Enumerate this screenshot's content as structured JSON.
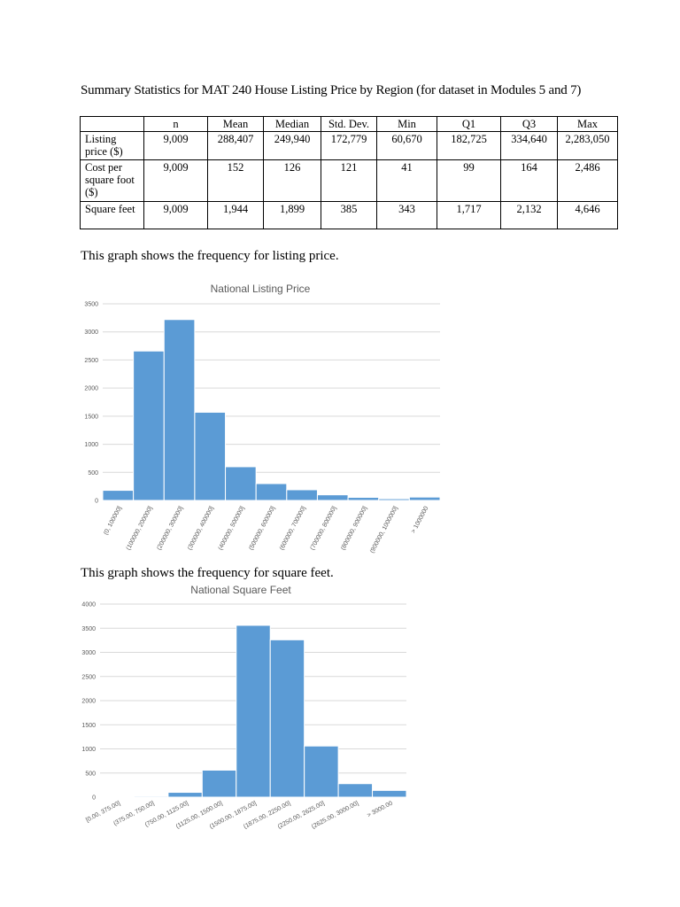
{
  "document": {
    "heading": "Summary Statistics for MAT 240 House Listing Price by Region (for dataset in Modules 5 and 7)",
    "caption_listing": "This graph shows the frequency for listing price.",
    "caption_sqft": "This graph shows the frequency for square  feet."
  },
  "table": {
    "headers": [
      "",
      "n",
      "Mean",
      "Median",
      "Std. Dev.",
      "Min",
      "Q1",
      "Q3",
      "Max"
    ],
    "rows": [
      {
        "label": "Listing price ($)",
        "values": [
          "9,009",
          "288,407",
          "249,940",
          "172,779",
          "60,670",
          "182,725",
          "334,640",
          "2,283,050"
        ]
      },
      {
        "label": "Cost per square foot ($)",
        "values": [
          "9,009",
          "152",
          "126",
          "121",
          "41",
          "99",
          "164",
          "2,486"
        ]
      },
      {
        "label": "Square feet",
        "values": [
          "9,009",
          "1,944",
          "1,899",
          "385",
          "343",
          "1,717",
          "2,132",
          "4,646"
        ]
      }
    ]
  },
  "chart_data": [
    {
      "type": "bar",
      "title": "National Listing Price",
      "categories": [
        "(0, 100000]",
        "(100000, 200000]",
        "(200000, 300000]",
        "(300000, 400000]",
        "(400000, 500000]",
        "(500000, 600000]",
        "(600000, 700000]",
        "(700000, 800000]",
        "(800000, 900000]",
        "(900000, 1000000]",
        "> 1000000"
      ],
      "values": [
        180,
        2660,
        3220,
        1570,
        600,
        300,
        190,
        100,
        55,
        30,
        60
      ],
      "yticks": [
        "0",
        "500",
        "1000",
        "1500",
        "2000",
        "2500",
        "3000",
        "3500"
      ],
      "ylim": [
        0,
        3500
      ],
      "xlabel": "",
      "ylabel": "",
      "grid": true,
      "bar_color": "#5b9bd5"
    },
    {
      "type": "bar",
      "title": "National Square Feet",
      "categories": [
        "[0.00, 375.00]",
        "(375.00, 750.00]",
        "(750.00, 1125.00]",
        "(1125.00, 1500.00]",
        "(1500.00, 1875.00]",
        "(1875.00, 2250.00]",
        "(2250.00, 2625.00]",
        "(2625.00, 3000.00]",
        "> 3000.00"
      ],
      "values": [
        5,
        20,
        100,
        560,
        3560,
        3260,
        1060,
        280,
        140
      ],
      "yticks": [
        "0",
        "500",
        "1000",
        "1500",
        "2000",
        "2500",
        "3000",
        "3500",
        "4000"
      ],
      "ylim": [
        0,
        4000
      ],
      "xlabel": "",
      "ylabel": "",
      "grid": true,
      "bar_color": "#5b9bd5"
    }
  ]
}
